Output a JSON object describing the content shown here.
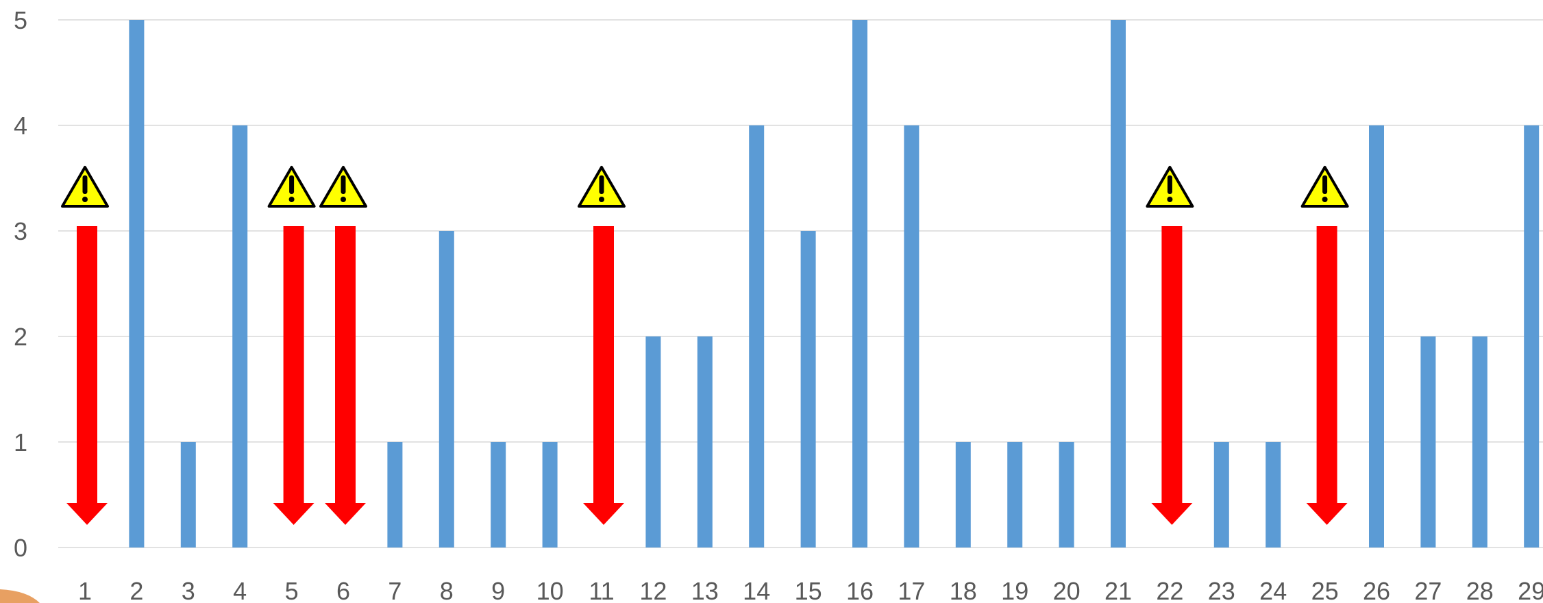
{
  "chart_data": {
    "type": "bar",
    "title": "",
    "xlabel": "",
    "ylabel": "",
    "ylim": [
      0,
      5
    ],
    "y_ticks": [
      "0",
      "1",
      "2",
      "3",
      "4",
      "5"
    ],
    "categories": [
      "1",
      "2",
      "3",
      "4",
      "5",
      "6",
      "7",
      "8",
      "9",
      "10",
      "11",
      "12",
      "13",
      "14",
      "15",
      "16",
      "17",
      "18",
      "19",
      "20",
      "21",
      "22",
      "23",
      "24",
      "25",
      "26",
      "27",
      "28",
      "29"
    ],
    "values": [
      0,
      5,
      1,
      4,
      0,
      0,
      1,
      3,
      1,
      1,
      0,
      2,
      2,
      4,
      3,
      5,
      4,
      1,
      1,
      1,
      5,
      0,
      1,
      1,
      0,
      4,
      2,
      2,
      4
    ],
    "grid": true,
    "legend": "none",
    "bar_color": "#5b9bd5",
    "annotations": {
      "warning_arrows_at": [
        "1",
        "5",
        "6",
        "11",
        "22",
        "25"
      ],
      "arrow_color": "#ff0000",
      "warning_icon": "warning-triangle-icon",
      "warning_color": "#ffff00"
    }
  }
}
